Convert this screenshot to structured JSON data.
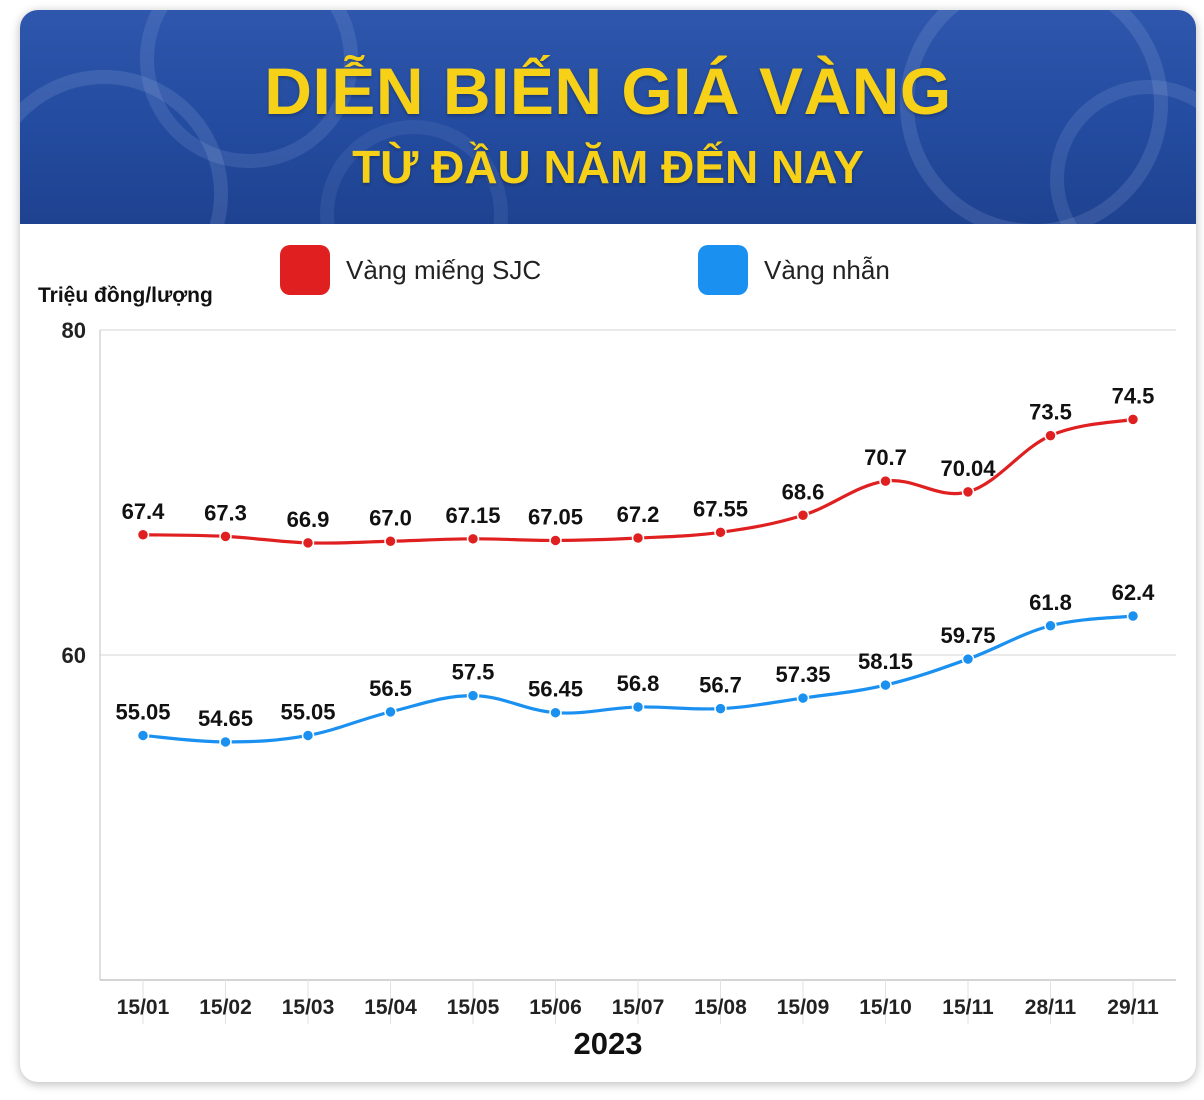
{
  "header": {
    "title": "DIỄN BIẾN GIÁ VÀNG",
    "subtitle": "TỪ ĐẦU NĂM ĐẾN NAY"
  },
  "colors": {
    "banner": "#2a52a6",
    "title": "#f7d117",
    "sjc": "#e02020",
    "ring": "#1a90f0"
  },
  "legend": {
    "sjc_label": "Vàng miếng SJC",
    "ring_label": "Vàng nhẫn"
  },
  "chart_data": {
    "type": "line",
    "title": "DIỄN BIẾN GIÁ VÀNG",
    "ylabel": "Triệu đồng/lượng",
    "xlabel": "2023",
    "ylim": [
      40,
      80
    ],
    "yticks": [
      60,
      80
    ],
    "grid": true,
    "legend_position": "top",
    "categories": [
      "15/01",
      "15/02",
      "15/03",
      "15/04",
      "15/05",
      "15/06",
      "15/07",
      "15/08",
      "15/09",
      "15/10",
      "15/11",
      "28/11",
      "29/11"
    ],
    "series": [
      {
        "name": "Vàng miếng SJC",
        "color": "#e02020",
        "values": [
          67.4,
          67.3,
          66.9,
          67.0,
          67.15,
          67.05,
          67.2,
          67.55,
          68.6,
          70.7,
          70.04,
          73.5,
          74.5
        ],
        "labels": [
          "67.4",
          "67.3",
          "66.9",
          "67.0",
          "67.15",
          "67.05",
          "67.2",
          "67.55",
          "68.6",
          "70.7",
          "70.04",
          "73.5",
          "74.5"
        ]
      },
      {
        "name": "Vàng nhẫn",
        "color": "#1a90f0",
        "values": [
          55.05,
          54.65,
          55.05,
          56.5,
          57.5,
          56.45,
          56.8,
          56.7,
          57.35,
          58.15,
          59.75,
          61.8,
          62.4
        ],
        "labels": [
          "55.05",
          "54.65",
          "55.05",
          "56.5",
          "57.5",
          "56.45",
          "56.8",
          "56.7",
          "57.35",
          "58.15",
          "59.75",
          "61.8",
          "62.4"
        ]
      }
    ]
  }
}
